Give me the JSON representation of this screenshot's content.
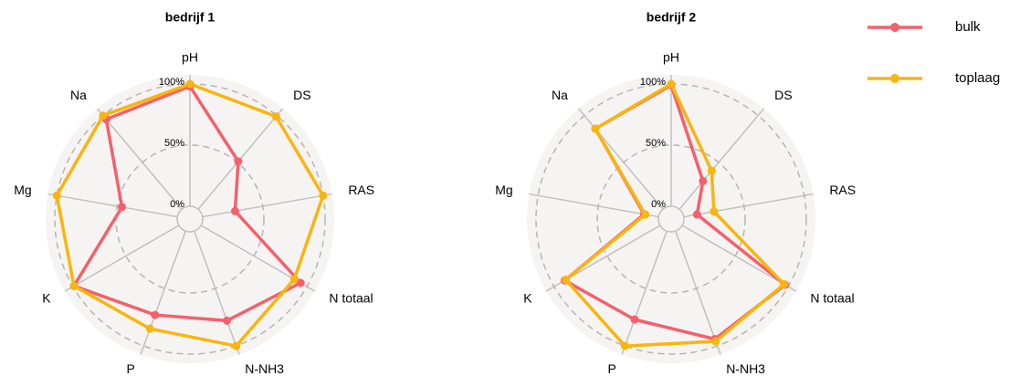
{
  "chart_data": [
    {
      "type": "radar",
      "title": "bedrijf 1",
      "categories": [
        "pH",
        "DS",
        "RAS",
        "N totaal",
        "N-NH3",
        "P",
        "K",
        "Mg",
        "Na"
      ],
      "series": [
        {
          "name": "bulk",
          "color": "#f4606c",
          "values": [
            98,
            51,
            27,
            94,
            78,
            73,
            99,
            46,
            96
          ]
        },
        {
          "name": "toplaag",
          "color": "#f9b50f",
          "values": [
            100,
            99,
            100,
            88,
            100,
            85,
            99,
            100,
            100
          ]
        }
      ],
      "ylim": [
        0,
        100
      ],
      "yticks": [
        {
          "value": 0,
          "label": "0%"
        },
        {
          "value": 50,
          "label": "50%"
        },
        {
          "value": 100,
          "label": "100%"
        }
      ]
    },
    {
      "type": "radar",
      "title": "bedrijf 2",
      "categories": [
        "pH",
        "DS",
        "RAS",
        "N totaal",
        "N-NH3",
        "P",
        "K",
        "Mg",
        "Na"
      ],
      "series": [
        {
          "name": "bulk",
          "color": "#f4606c",
          "values": [
            99,
            30,
            11,
            97,
            94,
            77,
            90,
            12,
            86
          ]
        },
        {
          "name": "toplaag",
          "color": "#f9b50f",
          "values": [
            100,
            41,
            25,
            96,
            96,
            100,
            89,
            11,
            86
          ]
        }
      ],
      "ylim": [
        0,
        100
      ],
      "yticks": [
        {
          "value": 0,
          "label": "0%"
        },
        {
          "value": 50,
          "label": "50%"
        },
        {
          "value": 100,
          "label": "100%"
        }
      ]
    }
  ]
}
